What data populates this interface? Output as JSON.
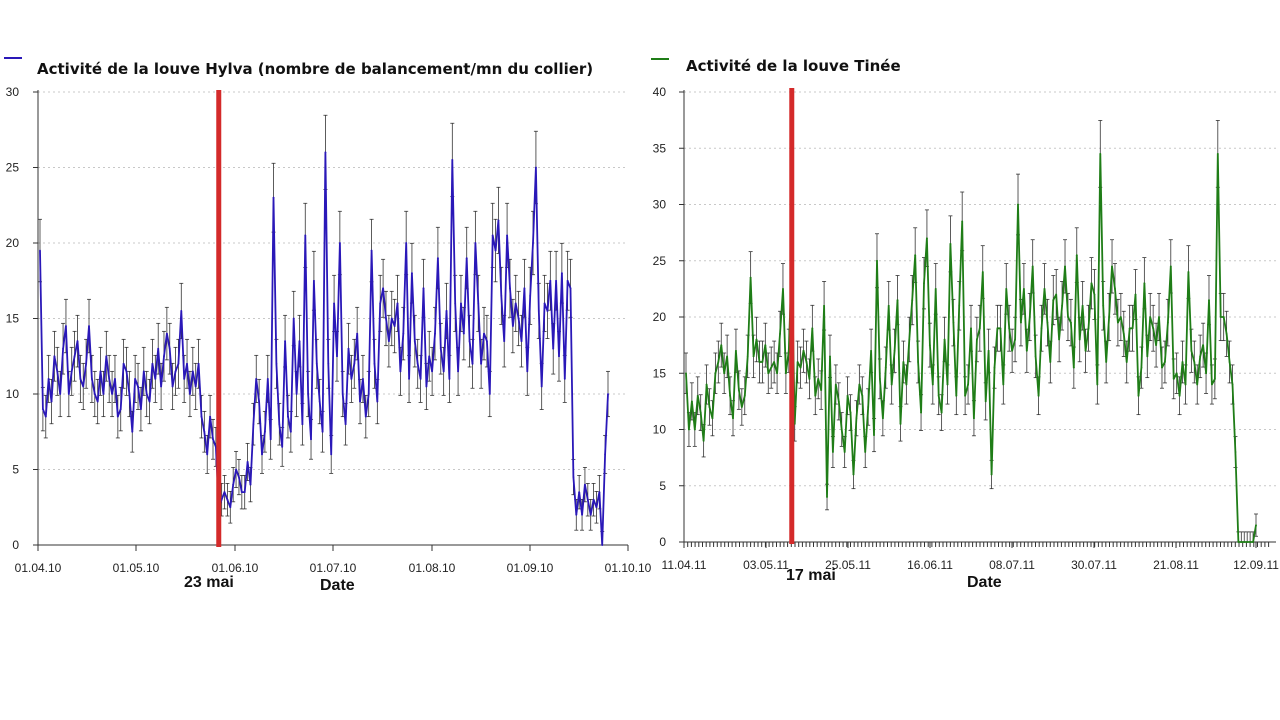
{
  "chart_data": [
    {
      "type": "line",
      "title": "",
      "legend_position": "top-left",
      "series": [
        {
          "name": "Activité de la louve Hylva (nombre de balancement/mn du collier)",
          "color": "#2a18b8",
          "values": [
            19.5,
            9.0,
            8.5,
            11.0,
            9.5,
            12.5,
            11.5,
            10.0,
            13.0,
            14.5,
            10.0,
            11.5,
            12.5,
            13.5,
            11.0,
            10.5,
            12.0,
            14.5,
            11.0,
            10.0,
            9.5,
            11.5,
            10.0,
            12.5,
            11.0,
            10.0,
            11.0,
            8.5,
            9.0,
            12.0,
            11.5,
            10.0,
            7.5,
            11.0,
            10.5,
            9.0,
            11.5,
            10.0,
            9.5,
            12.0,
            11.0,
            13.0,
            10.5,
            12.5,
            14.0,
            13.0,
            10.5,
            11.5,
            12.0,
            15.5,
            11.0,
            12.0,
            10.0,
            11.5,
            10.5,
            12.0,
            8.5,
            7.5,
            6.0,
            8.5,
            7.0,
            6.5,
            2.5,
            3.0,
            3.5,
            3.0,
            2.5,
            4.0,
            5.0,
            4.5,
            3.5,
            3.5,
            5.5,
            4.0,
            8.0,
            11.0,
            9.5,
            6.0,
            7.5,
            11.0,
            7.0,
            23.0,
            12.0,
            8.0,
            6.5,
            13.5,
            8.5,
            7.5,
            15.0,
            10.0,
            13.5,
            8.0,
            20.5,
            10.0,
            7.0,
            17.5,
            12.0,
            9.5,
            7.5,
            26.0,
            12.0,
            6.0,
            16.0,
            12.5,
            20.0,
            10.0,
            8.0,
            13.0,
            11.0,
            12.0,
            14.0,
            9.5,
            11.0,
            8.5,
            10.0,
            19.5,
            12.0,
            9.5,
            16.0,
            17.0,
            15.0,
            13.5,
            15.0,
            14.5,
            16.0,
            11.5,
            14.0,
            20.0,
            11.0,
            18.0,
            13.5,
            12.0,
            11.0,
            17.0,
            10.5,
            12.5,
            11.5,
            14.0,
            19.0,
            13.0,
            11.5,
            15.5,
            11.0,
            25.5,
            16.0,
            11.5,
            16.0,
            14.0,
            19.0,
            13.5,
            12.0,
            20.0,
            16.0,
            12.0,
            14.0,
            13.5,
            10.0,
            20.5,
            19.5,
            21.5,
            16.5,
            13.5,
            20.5,
            17.0,
            14.5,
            16.0,
            15.0,
            13.5,
            17.0,
            11.5,
            16.5,
            20.0,
            25.0,
            15.5,
            10.5,
            16.0,
            15.5,
            17.5,
            13.0,
            17.5,
            12.5,
            18.0,
            11.0,
            17.5,
            17.0,
            4.5,
            2.0,
            3.5,
            2.0,
            4.0,
            3.0,
            2.0,
            3.0,
            2.5,
            3.5,
            0.0,
            6.0,
            10.0
          ]
        }
      ],
      "y_ticks": [
        0,
        5,
        10,
        15,
        20,
        25,
        30
      ],
      "ylim": [
        0,
        30
      ],
      "x_tick_labels": [
        "01.04.10",
        "01.05.10",
        "01.06.10",
        "01.07.10",
        "01.08.10",
        "01.09.10",
        "01.10.10"
      ],
      "x_label": "Date",
      "marker": {
        "label": "23 mai",
        "color": "#d42a2a",
        "index": 62
      }
    },
    {
      "type": "line",
      "title": "",
      "legend_position": "top-left",
      "series": [
        {
          "name": "Activité de la louve Tinée",
          "color": "#1f7d17",
          "values": [
            15.0,
            10.0,
            12.5,
            10.0,
            13.0,
            11.5,
            9.0,
            14.0,
            12.0,
            11.0,
            15.0,
            16.0,
            17.5,
            15.0,
            16.5,
            13.0,
            11.0,
            17.0,
            13.5,
            12.0,
            13.0,
            16.5,
            23.5,
            16.5,
            18.0,
            16.0,
            16.0,
            17.5,
            15.0,
            15.5,
            16.0,
            15.0,
            18.5,
            22.5,
            15.0,
            17.0,
            25.0,
            10.5,
            16.0,
            15.5,
            17.0,
            16.0,
            14.5,
            19.0,
            13.0,
            14.5,
            13.5,
            21.0,
            4.0,
            16.5,
            8.0,
            14.0,
            12.5,
            10.0,
            8.0,
            13.0,
            11.5,
            6.0,
            11.0,
            14.0,
            13.0,
            8.0,
            12.0,
            17.0,
            9.5,
            25.0,
            14.5,
            11.0,
            15.5,
            21.0,
            14.0,
            17.0,
            21.5,
            10.5,
            16.0,
            14.0,
            18.0,
            21.5,
            25.5,
            16.0,
            11.5,
            23.0,
            27.0,
            17.5,
            14.0,
            22.5,
            13.0,
            11.5,
            18.0,
            14.0,
            26.5,
            19.5,
            13.0,
            21.0,
            28.5,
            13.0,
            14.0,
            19.0,
            11.0,
            18.0,
            19.0,
            24.0,
            12.5,
            17.0,
            6.0,
            15.5,
            19.0,
            19.0,
            14.0,
            22.5,
            19.0,
            17.0,
            18.0,
            30.0,
            19.5,
            22.5,
            17.0,
            20.0,
            24.5,
            16.5,
            13.0,
            19.0,
            22.5,
            19.5,
            16.0,
            21.5,
            22.0,
            18.0,
            21.0,
            24.5,
            20.0,
            19.5,
            15.5,
            25.5,
            18.0,
            21.0,
            17.0,
            19.0,
            23.0,
            22.0,
            14.0,
            34.5,
            21.0,
            16.0,
            20.0,
            24.5,
            22.5,
            19.5,
            20.0,
            18.5,
            16.0,
            19.0,
            19.0,
            22.0,
            13.0,
            15.5,
            23.0,
            16.5,
            20.0,
            19.0,
            17.5,
            20.0,
            15.5,
            16.0,
            19.5,
            24.5,
            14.5,
            15.0,
            13.0,
            16.0,
            14.0,
            24.0,
            17.0,
            16.0,
            14.0,
            16.5,
            17.5,
            15.0,
            21.5,
            14.0,
            14.5,
            34.5,
            20.0,
            20.0,
            18.5,
            16.0,
            14.0,
            8.0,
            0.0,
            0.0,
            0.0,
            0.0,
            0.0,
            0.0,
            1.5
          ]
        }
      ],
      "y_ticks": [
        0,
        5,
        10,
        15,
        20,
        25,
        30,
        35,
        40
      ],
      "ylim": [
        0,
        40
      ],
      "x_tick_labels": [
        "11.04.11",
        "03.05.11",
        "25.05.11",
        "16.06.11",
        "08.07.11",
        "30.07.11",
        "21.08.11",
        "12.09.11"
      ],
      "x_label": "Date",
      "marker": {
        "label": "17 mai",
        "color": "#d42a2a",
        "index": 36
      }
    }
  ]
}
